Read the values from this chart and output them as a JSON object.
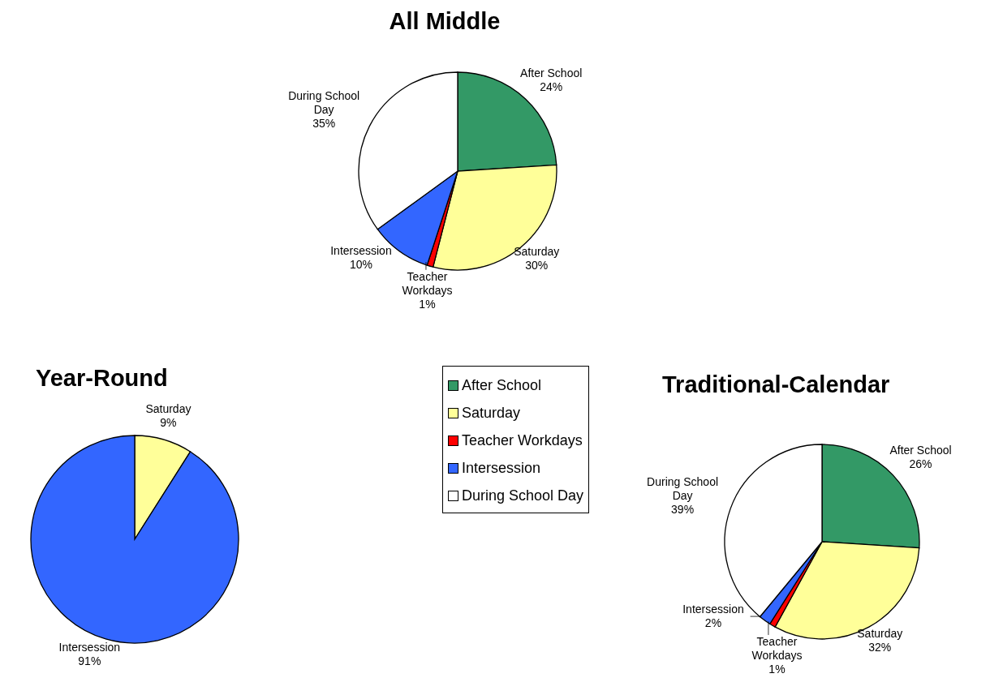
{
  "chart_data": [
    {
      "type": "pie",
      "title": "All Middle",
      "categories": [
        "After School",
        "Saturday",
        "Teacher Workdays",
        "Intersession",
        "During School Day"
      ],
      "values": [
        24,
        30,
        1,
        10,
        35
      ],
      "colors": [
        "#339966",
        "#ffff99",
        "#ff0000",
        "#3366ff",
        "#ffffff"
      ],
      "value_labels": [
        "24%",
        "30%",
        "1%",
        "10%",
        "35%"
      ],
      "legend": false
    },
    {
      "type": "pie",
      "title": "Year-Round",
      "categories": [
        "Saturday",
        "Intersession"
      ],
      "values": [
        9,
        91
      ],
      "colors": [
        "#ffff99",
        "#3366ff"
      ],
      "value_labels": [
        "9%",
        "91%"
      ],
      "legend": false
    },
    {
      "type": "pie",
      "title": "Traditional-Calendar",
      "categories": [
        "After School",
        "Saturday",
        "Teacher Workdays",
        "Intersession",
        "During School Day"
      ],
      "values": [
        26,
        32,
        1,
        2,
        39
      ],
      "colors": [
        "#339966",
        "#ffff99",
        "#ff0000",
        "#3366ff",
        "#ffffff"
      ],
      "value_labels": [
        "26%",
        "32%",
        "1%",
        "2%",
        "39%"
      ],
      "legend": "left"
    }
  ]
}
